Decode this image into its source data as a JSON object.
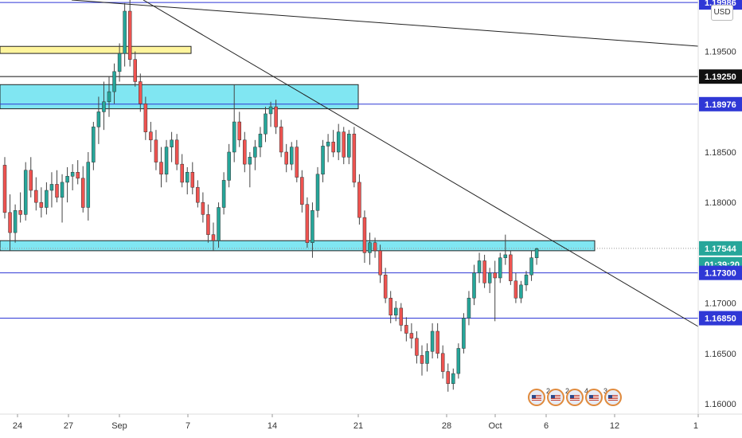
{
  "chart_data": {
    "type": "candlestick",
    "symbol_currency": "USD",
    "x_ticks": [
      "24",
      "27",
      "Sep",
      "7",
      "14",
      "21",
      "28",
      "Oct",
      "6",
      "12",
      "1"
    ],
    "y_ticks": [
      "1.19500",
      "1.18500",
      "1.18000",
      "1.17000",
      "1.16500",
      "1.16000"
    ],
    "ylim": [
      1.1585,
      1.2
    ],
    "price_labels": [
      {
        "value": "1.19986",
        "kind": "hline"
      },
      {
        "value": "1.19250",
        "kind": "hline-dark"
      },
      {
        "value": "1.18976",
        "kind": "hline"
      },
      {
        "value": "1.17544",
        "kind": "last-price"
      },
      {
        "value": "01:39:20",
        "kind": "countdown"
      },
      {
        "value": "1.17300",
        "kind": "hline"
      },
      {
        "value": "1.16850",
        "kind": "hline"
      }
    ],
    "horizontal_lines": [
      1.19986,
      1.1925,
      1.18976,
      1.173,
      1.1685
    ],
    "last_price": 1.17544,
    "zones": [
      {
        "color": "#fff59d",
        "price_top": 1.1955,
        "price_bottom": 1.1948
      },
      {
        "color": "#80e6f2",
        "price_top": 1.1917,
        "price_bottom": 1.1893
      },
      {
        "color": "#80e6f2",
        "price_top": 1.1762,
        "price_bottom": 1.1752
      }
    ],
    "trendlines": [
      {
        "from": [
          0,
          1.2026
        ],
        "to": [
          160,
          1.195
        ]
      },
      {
        "from": [
          0,
          1.2026
        ],
        "to": [
          160,
          1.167
        ]
      }
    ],
    "candles": [
      [
        1.1837,
        1.1845,
        1.1784,
        1.179
      ],
      [
        1.179,
        1.1808,
        1.1752,
        1.177
      ],
      [
        1.177,
        1.1798,
        1.176,
        1.1792
      ],
      [
        1.1792,
        1.181,
        1.178,
        1.1788
      ],
      [
        1.1788,
        1.184,
        1.1782,
        1.1832
      ],
      [
        1.1832,
        1.1845,
        1.1805,
        1.1812
      ],
      [
        1.1812,
        1.1825,
        1.1792,
        1.18
      ],
      [
        1.18,
        1.1815,
        1.1785,
        1.1795
      ],
      [
        1.1795,
        1.182,
        1.1788,
        1.1812
      ],
      [
        1.1812,
        1.183,
        1.1795,
        1.1818
      ],
      [
        1.1818,
        1.1832,
        1.18,
        1.1805
      ],
      [
        1.1805,
        1.1828,
        1.178,
        1.182
      ],
      [
        1.182,
        1.1835,
        1.18,
        1.1826
      ],
      [
        1.1826,
        1.1838,
        1.1812,
        1.183
      ],
      [
        1.183,
        1.1842,
        1.1818,
        1.1824
      ],
      [
        1.1824,
        1.1836,
        1.179,
        1.1795
      ],
      [
        1.1795,
        1.185,
        1.1782,
        1.184
      ],
      [
        1.184,
        1.188,
        1.1832,
        1.1875
      ],
      [
        1.1875,
        1.1905,
        1.1858,
        1.189
      ],
      [
        1.189,
        1.192,
        1.1872,
        1.19
      ],
      [
        1.19,
        1.1925,
        1.1885,
        1.191
      ],
      [
        1.191,
        1.1938,
        1.1898,
        1.193
      ],
      [
        1.193,
        1.1958,
        1.192,
        1.1948
      ],
      [
        1.1948,
        1.1998,
        1.1935,
        1.199
      ],
      [
        1.199,
        1.2011,
        1.1935,
        1.1942
      ],
      [
        1.1942,
        1.195,
        1.1915,
        1.192
      ],
      [
        1.192,
        1.1928,
        1.189,
        1.1898
      ],
      [
        1.1898,
        1.1905,
        1.1862,
        1.187
      ],
      [
        1.187,
        1.188,
        1.185,
        1.1862
      ],
      [
        1.1862,
        1.1872,
        1.1832,
        1.184
      ],
      [
        1.184,
        1.1855,
        1.1815,
        1.1828
      ],
      [
        1.1828,
        1.1862,
        1.182,
        1.1855
      ],
      [
        1.1855,
        1.187,
        1.184,
        1.1862
      ],
      [
        1.1862,
        1.1868,
        1.1832,
        1.1838
      ],
      [
        1.1838,
        1.1848,
        1.1815,
        1.182
      ],
      [
        1.182,
        1.1835,
        1.1808,
        1.183
      ],
      [
        1.183,
        1.184,
        1.1808,
        1.1815
      ],
      [
        1.1815,
        1.1822,
        1.1795,
        1.18
      ],
      [
        1.18,
        1.181,
        1.178,
        1.1788
      ],
      [
        1.1788,
        1.1798,
        1.176,
        1.1768
      ],
      [
        1.1768,
        1.178,
        1.1752,
        1.1762
      ],
      [
        1.1762,
        1.18,
        1.1755,
        1.1795
      ],
      [
        1.1795,
        1.183,
        1.1788,
        1.1822
      ],
      [
        1.1822,
        1.1858,
        1.1815,
        1.185
      ],
      [
        1.185,
        1.1917,
        1.184,
        1.188
      ],
      [
        1.188,
        1.189,
        1.1855,
        1.1862
      ],
      [
        1.1862,
        1.187,
        1.183,
        1.1838
      ],
      [
        1.1838,
        1.185,
        1.1815,
        1.1845
      ],
      [
        1.1845,
        1.1862,
        1.1832,
        1.1855
      ],
      [
        1.1855,
        1.1875,
        1.1845,
        1.1868
      ],
      [
        1.1868,
        1.1895,
        1.186,
        1.1888
      ],
      [
        1.1888,
        1.19,
        1.1875,
        1.1895
      ],
      [
        1.1895,
        1.1902,
        1.1868,
        1.1875
      ],
      [
        1.1875,
        1.1882,
        1.1845,
        1.185
      ],
      [
        1.185,
        1.1858,
        1.183,
        1.1838
      ],
      [
        1.1838,
        1.186,
        1.1832,
        1.1855
      ],
      [
        1.1855,
        1.1862,
        1.182,
        1.1825
      ],
      [
        1.1825,
        1.1832,
        1.179,
        1.1798
      ],
      [
        1.1798,
        1.1805,
        1.1755,
        1.176
      ],
      [
        1.176,
        1.18,
        1.1745,
        1.1792
      ],
      [
        1.1792,
        1.1835,
        1.1785,
        1.1828
      ],
      [
        1.1828,
        1.1862,
        1.182,
        1.1856
      ],
      [
        1.1856,
        1.1868,
        1.184,
        1.186
      ],
      [
        1.186,
        1.1872,
        1.1845,
        1.185
      ],
      [
        1.185,
        1.1878,
        1.1842,
        1.187
      ],
      [
        1.187,
        1.1875,
        1.1838,
        1.1845
      ],
      [
        1.1845,
        1.1872,
        1.1838,
        1.1868
      ],
      [
        1.1868,
        1.1875,
        1.1815,
        1.182
      ],
      [
        1.182,
        1.1828,
        1.1778,
        1.1785
      ],
      [
        1.1785,
        1.1792,
        1.174,
        1.175
      ],
      [
        1.175,
        1.177,
        1.1738,
        1.176
      ],
      [
        1.176,
        1.1765,
        1.1745,
        1.1752
      ],
      [
        1.1752,
        1.1758,
        1.172,
        1.1728
      ],
      [
        1.1728,
        1.1735,
        1.17,
        1.1705
      ],
      [
        1.1705,
        1.1712,
        1.168,
        1.1688
      ],
      [
        1.1688,
        1.1702,
        1.1682,
        1.1695
      ],
      [
        1.1695,
        1.17,
        1.1672,
        1.1678
      ],
      [
        1.1678,
        1.1686,
        1.1662,
        1.167
      ],
      [
        1.167,
        1.168,
        1.1655,
        1.1665
      ],
      [
        1.1665,
        1.1672,
        1.164,
        1.1648
      ],
      [
        1.1648,
        1.1658,
        1.1628,
        1.164
      ],
      [
        1.164,
        1.166,
        1.1632,
        1.1652
      ],
      [
        1.1652,
        1.168,
        1.1645,
        1.1672
      ],
      [
        1.1672,
        1.168,
        1.1645,
        1.165
      ],
      [
        1.165,
        1.1658,
        1.1625,
        1.1632
      ],
      [
        1.1632,
        1.164,
        1.1612,
        1.162
      ],
      [
        1.162,
        1.1635,
        1.1614,
        1.163
      ],
      [
        1.163,
        1.166,
        1.1625,
        1.1655
      ],
      [
        1.1655,
        1.169,
        1.165,
        1.1685
      ],
      [
        1.1685,
        1.1712,
        1.1678,
        1.1705
      ],
      [
        1.1705,
        1.1738,
        1.1698,
        1.173
      ],
      [
        1.173,
        1.175,
        1.172,
        1.1742
      ],
      [
        1.1742,
        1.1748,
        1.1715,
        1.172
      ],
      [
        1.172,
        1.1735,
        1.171,
        1.173
      ],
      [
        1.173,
        1.1742,
        1.1682,
        1.1725
      ],
      [
        1.1725,
        1.175,
        1.172,
        1.1745
      ],
      [
        1.1745,
        1.1768,
        1.1738,
        1.1748
      ],
      [
        1.1748,
        1.1752,
        1.1718,
        1.1722
      ],
      [
        1.1722,
        1.173,
        1.17,
        1.1705
      ],
      [
        1.1705,
        1.1722,
        1.17,
        1.1718
      ],
      [
        1.1718,
        1.1732,
        1.1712,
        1.1728
      ],
      [
        1.1728,
        1.1752,
        1.1722,
        1.1745
      ],
      [
        1.1745,
        1.1755,
        1.1738,
        1.1754
      ]
    ]
  }
}
